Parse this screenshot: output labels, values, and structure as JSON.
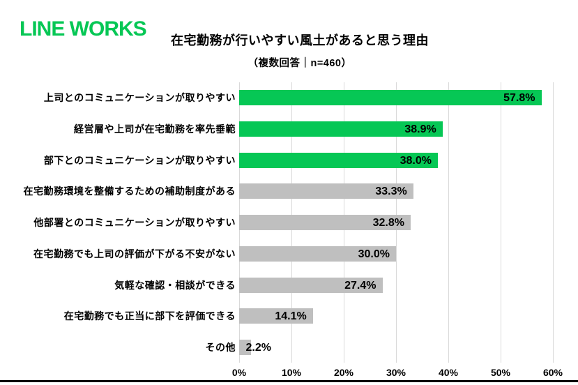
{
  "logo": {
    "text": "LINE WORKS",
    "color": "#06C755"
  },
  "chart_data": {
    "type": "bar",
    "orientation": "horizontal",
    "title": "在宅勤務が行いやすい風土があると思う理由",
    "subtitle": "（複数回答｜n=460）",
    "categories": [
      "上司とのコミュニケーションが取りやすい",
      "経営層や上司が在宅勤務を率先垂範",
      "部下とのコミュニケーションが取りやすい",
      "在宅勤務環境を整備するための補助制度がある",
      "他部署とのコミュニケーションが取りやすい",
      "在宅勤務でも上司の評価が下がる不安がない",
      "気軽な確認・相談ができる",
      "在宅勤務でも正当に部下を評価できる",
      "その他"
    ],
    "values": [
      57.8,
      38.9,
      38.0,
      33.3,
      32.8,
      30.0,
      27.4,
      14.1,
      2.2
    ],
    "value_labels": [
      "57.8%",
      "38.9%",
      "38.0%",
      "33.3%",
      "32.8%",
      "30.0%",
      "27.4%",
      "14.1%",
      "2.2%"
    ],
    "highlighted": [
      true,
      true,
      true,
      false,
      false,
      false,
      false,
      false,
      false
    ],
    "colors": {
      "highlight": "#06C755",
      "default": "#BFBFBF",
      "gridline": "#D9D9D9",
      "text": "#000000"
    },
    "x_axis": {
      "ticks": [
        "0%",
        "10%",
        "20%",
        "30%",
        "40%",
        "50%",
        "60%"
      ],
      "min": 0,
      "max": 60,
      "unit": "%",
      "grid": true
    },
    "legend_position": "none"
  }
}
